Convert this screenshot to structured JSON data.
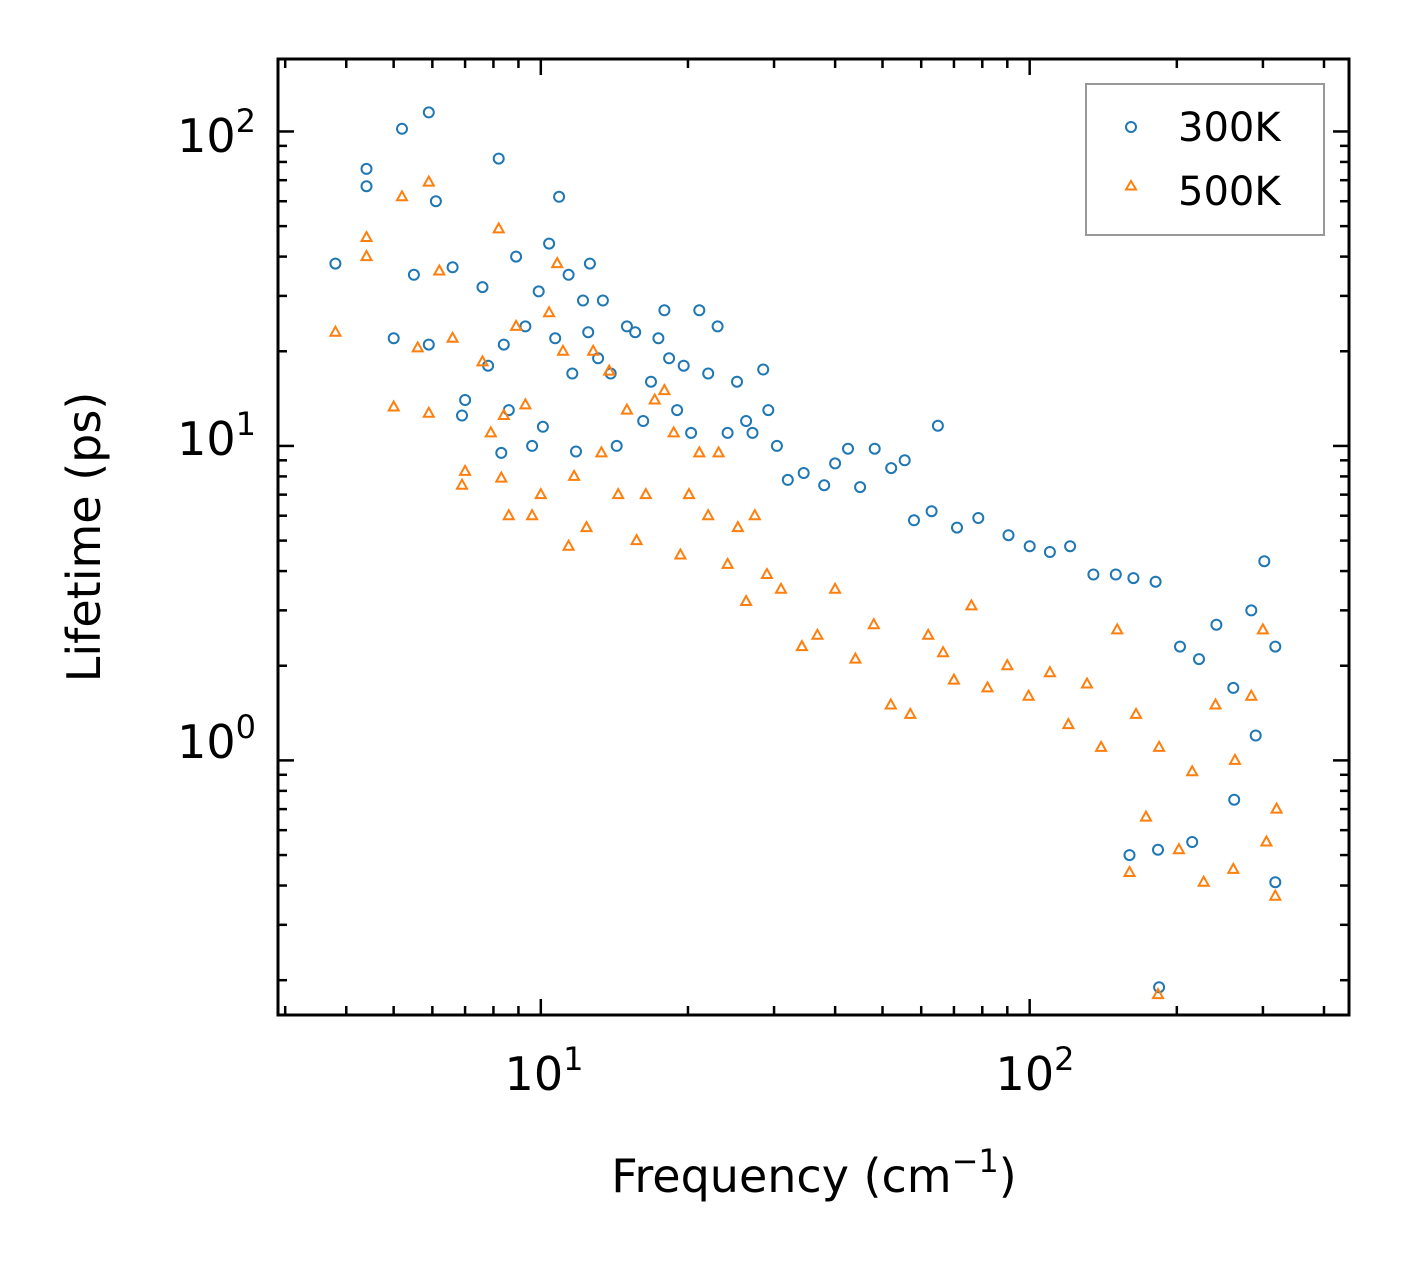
{
  "chart_data": {
    "type": "scatter",
    "xscale": "log",
    "yscale": "log",
    "xlabel": "Frequency (cm",
    "xlabel_sup": "−1",
    "xlabel_close": ")",
    "ylabel": "Lifetime (ps)",
    "xlim": [
      2.9,
      450
    ],
    "ylim": [
      0.155,
      170
    ],
    "x_ticks": [
      {
        "value": 10,
        "base": "10",
        "exp": "1"
      },
      {
        "value": 100,
        "base": "10",
        "exp": "2"
      }
    ],
    "y_ticks": [
      {
        "value": 1,
        "base": "10",
        "exp": "0"
      },
      {
        "value": 10,
        "base": "10",
        "exp": "1"
      },
      {
        "value": 100,
        "base": "10",
        "exp": "2"
      }
    ],
    "legend_position": "top-right",
    "series": [
      {
        "name": "300K",
        "marker": "circle",
        "color": "#1f77b4",
        "points": [
          [
            3.8,
            38
          ],
          [
            4.4,
            76
          ],
          [
            4.4,
            67
          ],
          [
            5.0,
            22
          ],
          [
            5.2,
            102
          ],
          [
            5.5,
            35
          ],
          [
            5.9,
            115
          ],
          [
            5.9,
            21
          ],
          [
            6.1,
            60
          ],
          [
            6.6,
            37
          ],
          [
            7.0,
            14
          ],
          [
            6.9,
            12.5
          ],
          [
            7.6,
            32
          ],
          [
            7.8,
            18
          ],
          [
            8.2,
            82
          ],
          [
            8.4,
            21
          ],
          [
            8.3,
            9.5
          ],
          [
            8.6,
            13
          ],
          [
            8.9,
            40
          ],
          [
            9.3,
            24
          ],
          [
            9.6,
            10
          ],
          [
            9.9,
            31
          ],
          [
            10.1,
            11.5
          ],
          [
            10.4,
            44
          ],
          [
            10.7,
            22
          ],
          [
            10.9,
            62
          ],
          [
            11.4,
            35
          ],
          [
            11.6,
            17
          ],
          [
            11.8,
            9.6
          ],
          [
            12.2,
            29
          ],
          [
            12.6,
            38
          ],
          [
            12.5,
            23
          ],
          [
            13.1,
            19
          ],
          [
            13.4,
            29
          ],
          [
            13.9,
            17
          ],
          [
            14.3,
            10
          ],
          [
            15.0,
            24
          ],
          [
            15.6,
            23
          ],
          [
            16.2,
            12
          ],
          [
            16.8,
            16
          ],
          [
            17.4,
            22
          ],
          [
            17.9,
            27
          ],
          [
            18.3,
            19
          ],
          [
            19.0,
            13
          ],
          [
            19.6,
            18
          ],
          [
            20.3,
            11
          ],
          [
            21.1,
            27
          ],
          [
            22.0,
            17
          ],
          [
            23.0,
            24
          ],
          [
            24.1,
            11
          ],
          [
            25.2,
            16
          ],
          [
            26.3,
            12
          ],
          [
            27.1,
            11
          ],
          [
            28.5,
            17.5
          ],
          [
            29.2,
            13
          ],
          [
            30.4,
            10
          ],
          [
            32.0,
            7.8
          ],
          [
            34.5,
            8.2
          ],
          [
            38.0,
            7.5
          ],
          [
            40.0,
            8.8
          ],
          [
            42.5,
            9.8
          ],
          [
            45.0,
            7.4
          ],
          [
            48.2,
            9.8
          ],
          [
            52.1,
            8.5
          ],
          [
            55.5,
            9.0
          ],
          [
            58.0,
            5.8
          ],
          [
            64.9,
            11.6
          ],
          [
            63.0,
            6.2
          ],
          [
            71.0,
            5.5
          ],
          [
            78.5,
            5.9
          ],
          [
            90.5,
            5.2
          ],
          [
            100.0,
            4.8
          ],
          [
            110.0,
            4.6
          ],
          [
            121.0,
            4.8
          ],
          [
            135.0,
            3.9
          ],
          [
            150.0,
            3.9
          ],
          [
            163.0,
            3.8
          ],
          [
            181.0,
            3.7
          ],
          [
            184.0,
            0.19
          ],
          [
            183.0,
            0.52
          ],
          [
            203.0,
            2.3
          ],
          [
            222.0,
            2.1
          ],
          [
            241.0,
            2.7
          ],
          [
            261.0,
            1.7
          ],
          [
            284.0,
            3.0
          ],
          [
            302.0,
            4.3
          ],
          [
            318.0,
            2.3
          ],
          [
            318.0,
            0.41
          ],
          [
            160.0,
            0.5
          ],
          [
            215.0,
            0.55
          ],
          [
            262.0,
            0.75
          ],
          [
            290.0,
            1.2
          ]
        ]
      },
      {
        "name": "500K",
        "marker": "triangle",
        "color": "#ff7f0e",
        "points": [
          [
            3.8,
            23
          ],
          [
            4.4,
            46
          ],
          [
            4.4,
            40
          ],
          [
            5.0,
            13.3
          ],
          [
            5.2,
            62
          ],
          [
            5.6,
            20.5
          ],
          [
            5.9,
            69
          ],
          [
            5.9,
            12.7
          ],
          [
            6.2,
            36
          ],
          [
            6.6,
            22
          ],
          [
            7.0,
            8.3
          ],
          [
            6.9,
            7.5
          ],
          [
            7.6,
            18.5
          ],
          [
            7.9,
            11
          ],
          [
            8.2,
            49
          ],
          [
            8.4,
            12.5
          ],
          [
            8.3,
            7.9
          ],
          [
            8.6,
            6
          ],
          [
            8.9,
            24
          ],
          [
            9.3,
            13.5
          ],
          [
            9.6,
            6
          ],
          [
            10.0,
            7
          ],
          [
            10.4,
            26.5
          ],
          [
            10.8,
            38
          ],
          [
            11.1,
            20
          ],
          [
            11.4,
            4.8
          ],
          [
            11.7,
            8
          ],
          [
            12.4,
            5.5
          ],
          [
            12.8,
            20
          ],
          [
            13.3,
            9.5
          ],
          [
            13.8,
            17.3
          ],
          [
            14.4,
            7
          ],
          [
            15.0,
            13
          ],
          [
            15.7,
            5
          ],
          [
            16.4,
            7
          ],
          [
            17.1,
            14
          ],
          [
            17.9,
            15
          ],
          [
            18.7,
            11
          ],
          [
            19.3,
            4.5
          ],
          [
            20.1,
            7
          ],
          [
            21.1,
            9.5
          ],
          [
            22.0,
            6
          ],
          [
            23.1,
            9.5
          ],
          [
            24.1,
            4.2
          ],
          [
            25.3,
            5.5
          ],
          [
            26.3,
            3.2
          ],
          [
            27.4,
            6.0
          ],
          [
            29.0,
            3.9
          ],
          [
            31.0,
            3.5
          ],
          [
            34.2,
            2.3
          ],
          [
            36.8,
            2.5
          ],
          [
            40.0,
            3.5
          ],
          [
            44.0,
            2.1
          ],
          [
            48.0,
            2.7
          ],
          [
            52.0,
            1.5
          ],
          [
            57.0,
            1.4
          ],
          [
            62.0,
            2.5
          ],
          [
            66.5,
            2.2
          ],
          [
            70.0,
            1.8
          ],
          [
            76.0,
            3.1
          ],
          [
            82.0,
            1.7
          ],
          [
            90.0,
            2.0
          ],
          [
            99.5,
            1.6
          ],
          [
            110.0,
            1.9
          ],
          [
            120.0,
            1.3
          ],
          [
            131.0,
            1.75
          ],
          [
            140.0,
            1.1
          ],
          [
            151.0,
            2.6
          ],
          [
            160.0,
            0.44
          ],
          [
            165.0,
            1.4
          ],
          [
            173.0,
            0.66
          ],
          [
            183.0,
            0.18
          ],
          [
            184.0,
            1.1
          ],
          [
            202.0,
            0.52
          ],
          [
            215.0,
            0.92
          ],
          [
            227.0,
            0.41
          ],
          [
            240.0,
            1.5
          ],
          [
            261.0,
            0.45
          ],
          [
            263.0,
            1.0
          ],
          [
            284.0,
            1.6
          ],
          [
            300.0,
            2.6
          ],
          [
            318.0,
            0.37
          ],
          [
            320.0,
            0.7
          ],
          [
            305.0,
            0.55
          ]
        ]
      }
    ]
  }
}
